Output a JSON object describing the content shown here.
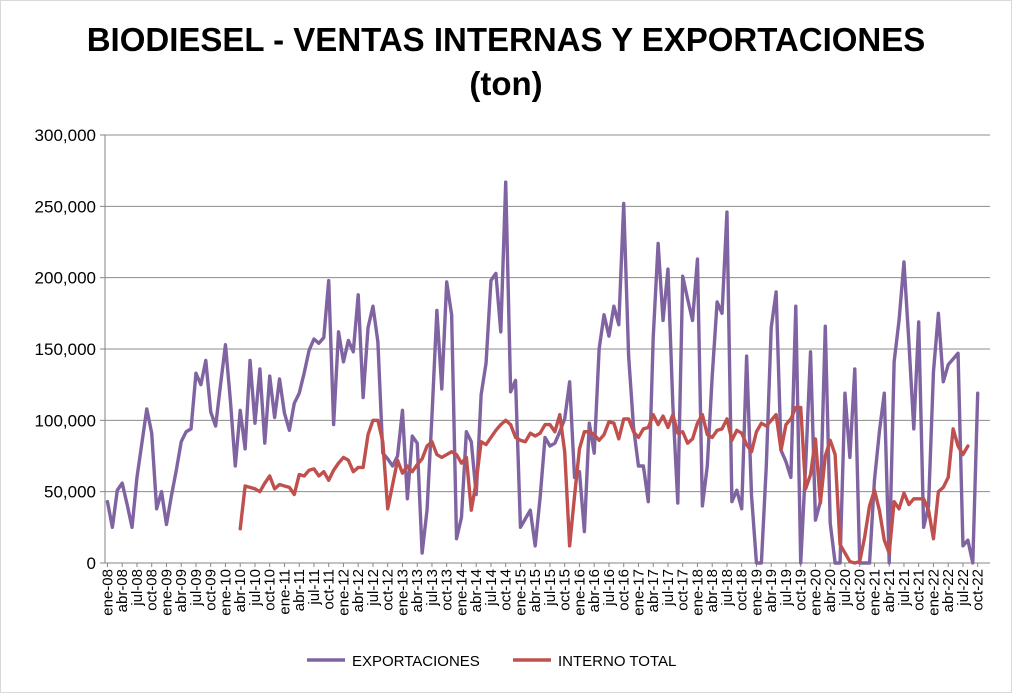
{
  "chart_data": {
    "type": "line",
    "title": "BIODIESEL - VENTAS INTERNAS Y EXPORTACIONES",
    "subtitle": "(ton)",
    "ylim": [
      0,
      300000
    ],
    "yticks": [
      0,
      50000,
      100000,
      150000,
      200000,
      250000,
      300000
    ],
    "ytick_labels": [
      "0",
      "50,000",
      "100,000",
      "150,000",
      "200,000",
      "250,000",
      "300,000"
    ],
    "xtick_labels": [
      "ene-08",
      "abr-08",
      "jul-08",
      "oct-08",
      "ene-09",
      "abr-09",
      "jul-09",
      "oct-09",
      "ene-10",
      "abr-10",
      "jul-10",
      "oct-10",
      "ene-11",
      "abr-11",
      "jul-11",
      "oct-11",
      "ene-12",
      "abr-12",
      "jul-12",
      "oct-12",
      "ene-13",
      "abr-13",
      "jul-13",
      "oct-13",
      "ene-14",
      "abr-14",
      "jul-14",
      "oct-14",
      "ene-15",
      "abr-15",
      "jul-15",
      "oct-15",
      "ene-16",
      "abr-16",
      "jul-16",
      "oct-16",
      "ene-17",
      "abr-17",
      "jul-17",
      "oct-17",
      "ene-18",
      "abr-18",
      "jul-18",
      "oct-18",
      "ene-19",
      "abr-19",
      "jul-19",
      "oct-19",
      "ene-20",
      "abr-20",
      "jul-20",
      "oct-20",
      "ene-21",
      "abr-21",
      "jul-21",
      "oct-21",
      "ene-22",
      "abr-22",
      "jul-22",
      "oct-22"
    ],
    "grid": true,
    "legend_position": "bottom",
    "series": [
      {
        "name": "EXPORTACIONES",
        "color": "#8064a2",
        "start_index": 0,
        "values": [
          43000,
          25000,
          51000,
          56000,
          41000,
          25000,
          60000,
          84000,
          108000,
          91000,
          38000,
          50000,
          27000,
          47000,
          65000,
          85000,
          92000,
          94000,
          133000,
          125000,
          142000,
          106000,
          96000,
          125000,
          153000,
          114000,
          68000,
          107000,
          80000,
          142000,
          98000,
          136000,
          84000,
          131000,
          102000,
          129000,
          105000,
          93000,
          112000,
          119000,
          133000,
          149000,
          157000,
          154000,
          158000,
          198000,
          97000,
          162000,
          141000,
          156000,
          148000,
          188000,
          116000,
          165000,
          180000,
          155000,
          77000,
          73000,
          68000,
          75000,
          107000,
          45000,
          89000,
          84000,
          7000,
          37000,
          103000,
          177000,
          122000,
          197000,
          174000,
          17000,
          32000,
          92000,
          85000,
          48000,
          118000,
          140000,
          198000,
          203000,
          162000,
          267000,
          120000,
          128000,
          25000,
          31000,
          37000,
          12000,
          46000,
          88000,
          82000,
          84000,
          92000,
          101000,
          127000,
          60000,
          64000,
          22000,
          98000,
          77000,
          150000,
          174000,
          159000,
          180000,
          167000,
          252000,
          145000,
          95000,
          68000,
          68000,
          43000,
          158000,
          224000,
          170000,
          206000,
          110000,
          42000,
          201000,
          185000,
          170000,
          213000,
          40000,
          68000,
          131000,
          183000,
          175000,
          246000,
          43000,
          51000,
          38000,
          145000,
          47000,
          0,
          0,
          68000,
          165000,
          190000,
          79000,
          71000,
          60000,
          180000,
          0,
          68000,
          148000,
          30000,
          43000,
          166000,
          28000,
          0,
          0,
          119000,
          74000,
          136000,
          0,
          0,
          0,
          58000,
          92000,
          119000,
          0,
          141000,
          170000,
          211000,
          155000,
          94000,
          169000,
          25000,
          40000,
          134000,
          175000,
          127000,
          139000,
          143000,
          147000,
          12000,
          16000,
          0,
          119000
        ]
      },
      {
        "name": "INTERNO TOTAL",
        "color": "#c0504d",
        "start_index": 27,
        "values": [
          24000,
          54000,
          53000,
          52000,
          50000,
          56000,
          61000,
          52000,
          55000,
          54000,
          53000,
          48000,
          62000,
          61000,
          65000,
          66000,
          61000,
          64000,
          58000,
          65000,
          70000,
          74000,
          72000,
          64000,
          67000,
          67000,
          90000,
          100000,
          100000,
          85000,
          38000,
          55000,
          72000,
          63000,
          68000,
          64000,
          69000,
          73000,
          82000,
          85000,
          76000,
          74000,
          76000,
          78000,
          76000,
          70000,
          74000,
          37000,
          57000,
          85000,
          83000,
          88000,
          93000,
          97000,
          100000,
          97000,
          88000,
          86000,
          85000,
          91000,
          89000,
          91000,
          97000,
          97000,
          92000,
          104000,
          78000,
          12000,
          47000,
          80000,
          92000,
          92000,
          90000,
          86000,
          90000,
          99000,
          98000,
          87000,
          101000,
          101000,
          92000,
          88000,
          94000,
          95000,
          104000,
          97000,
          103000,
          95000,
          104000,
          91000,
          92000,
          84000,
          87000,
          98000,
          104000,
          90000,
          88000,
          93000,
          94000,
          101000,
          86000,
          93000,
          91000,
          83000,
          78000,
          92000,
          98000,
          96000,
          100000,
          104000,
          79000,
          97000,
          101000,
          109000,
          109000,
          52000,
          62000,
          87000,
          42000,
          75000,
          86000,
          76000,
          13000,
          7000,
          1000,
          0,
          1000,
          18000,
          40000,
          51000,
          37000,
          16000,
          7000,
          43000,
          38000,
          49000,
          41000,
          45000,
          45000,
          45000,
          37000,
          17000,
          50000,
          53000,
          60000,
          94000,
          82000,
          76000,
          82000
        ]
      }
    ]
  }
}
